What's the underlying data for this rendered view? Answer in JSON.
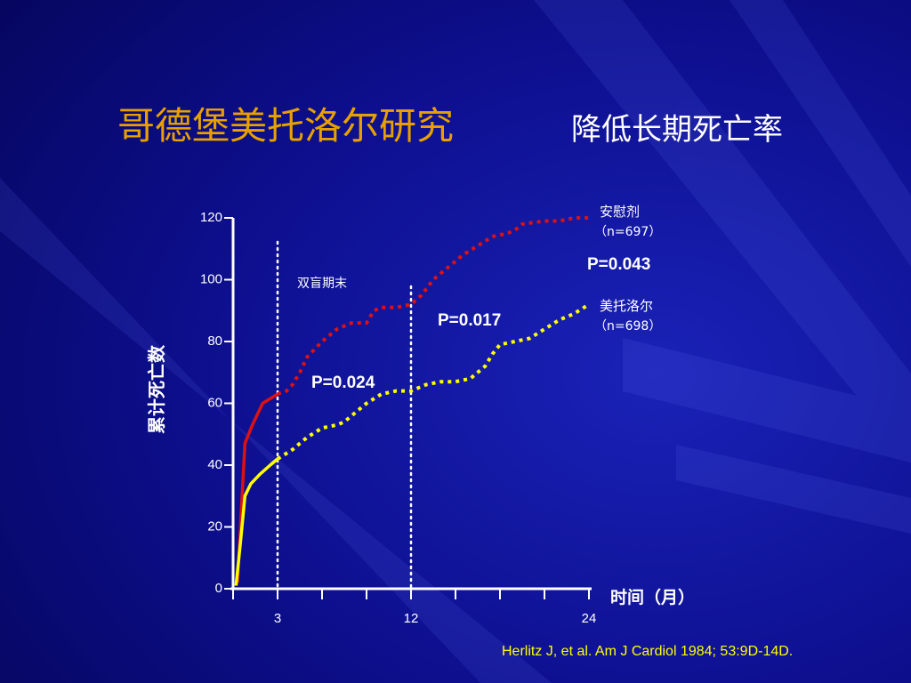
{
  "title": {
    "main": "哥德堡美托洛尔研究",
    "sub": "降低长期死亡率"
  },
  "citation": "Herlitz J, et al.  Am J Cardiol  1984; 53:9D-14D.",
  "colors": {
    "background": "#0a0a7a",
    "title_accent": "#e8a000",
    "placebo": "#dd1111",
    "metoprolol": "#ffff00",
    "axis": "#ffffff"
  },
  "chart_data": {
    "type": "line",
    "ylabel": "累计死亡数",
    "xlabel": "时间（月）",
    "ylim": [
      0,
      120
    ],
    "xlim": [
      0,
      24
    ],
    "yticks": [
      0,
      20,
      40,
      60,
      80,
      100,
      120
    ],
    "xticks": [
      3,
      12,
      24
    ],
    "grid": false,
    "series": [
      {
        "name": "安慰剂",
        "n_label": "（n=697）",
        "color": "#dd1111",
        "x": [
          0.3,
          0.5,
          0.8,
          1.3,
          2.0,
          3.0,
          3.6,
          4.0,
          4.5,
          5.0,
          6.0,
          7.0,
          8.0,
          9.0,
          9.5,
          10.0,
          11.0,
          12.0,
          12.7,
          13.5,
          14.5,
          15.5,
          16.5,
          17.5,
          18.5,
          19.0,
          19.5,
          21.0,
          22.0,
          23.0,
          24.0
        ],
        "y": [
          2,
          20,
          47,
          53,
          60,
          63,
          64,
          66,
          70,
          75,
          80,
          84,
          86,
          86,
          90,
          91,
          91,
          92,
          95,
          100,
          104,
          108,
          111,
          114,
          115,
          116,
          118,
          119,
          119,
          120,
          120
        ],
        "solid_until": 3
      },
      {
        "name": "美托洛尔",
        "n_label": "（n=698）",
        "color": "#ffff00",
        "x": [
          0.2,
          0.5,
          0.8,
          1.2,
          1.8,
          2.5,
          3.0,
          4.0,
          5.0,
          6.0,
          7.0,
          7.5,
          8.0,
          8.5,
          9.0,
          10.0,
          11.0,
          12.0,
          13.0,
          14.0,
          15.0,
          16.0,
          17.0,
          17.5,
          18.0,
          19.0,
          20.0,
          21.0,
          22.0,
          23.0,
          24.0
        ],
        "y": [
          1,
          15,
          30,
          34,
          37,
          40,
          42,
          45,
          49,
          52,
          53,
          54,
          56,
          58,
          60,
          63,
          64,
          64,
          66,
          67,
          67,
          68,
          72,
          76,
          79,
          80,
          81,
          84,
          87,
          89,
          92
        ],
        "solid_until": 3
      }
    ],
    "vlines": [
      {
        "x": 3,
        "label": ""
      },
      {
        "x": 12,
        "label": ""
      }
    ],
    "annotations": {
      "double_blind_end": "双盲期末",
      "p_3mo": "P=0.024",
      "p_12mo": "P=0.017",
      "p_24mo": "P=0.043"
    }
  }
}
